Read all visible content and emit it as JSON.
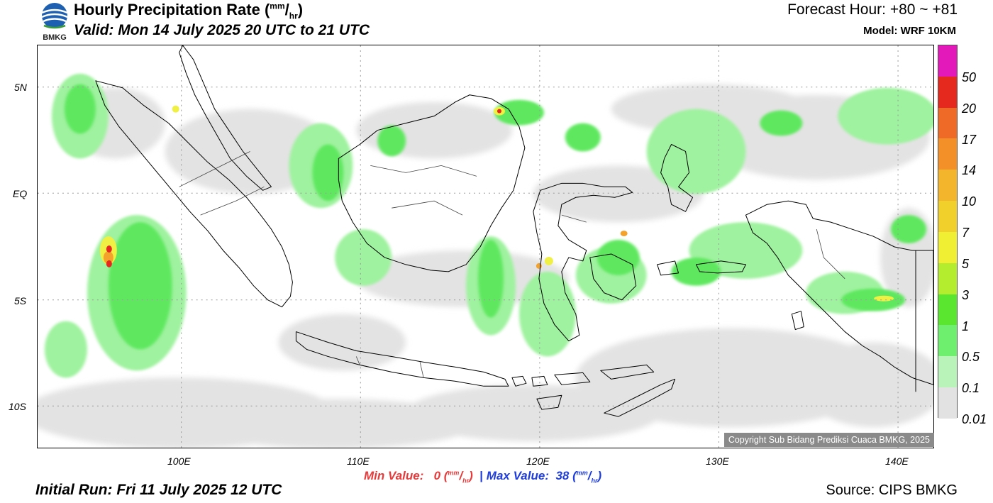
{
  "header": {
    "logo_text": "BMKG",
    "title": "Hourly Precipitation Rate (",
    "title_unit_top": "mm",
    "title_unit_slash": "/",
    "title_unit_bottom": "hr",
    "title_close": ")",
    "valid": "Valid: Mon 14 July 2025 20 UTC to 21 UTC",
    "forecast": "Forecast Hour: +80 ~ +81",
    "model": "Model: WRF 10KM"
  },
  "map": {
    "lat_labels": [
      "5N",
      "EQ",
      "5S",
      "10S"
    ],
    "lon_labels": [
      "100E",
      "110E",
      "120E",
      "130E",
      "140E"
    ],
    "copyright": "Copyright Sub Bidang Prediksi Cuaca BMKG, 2025",
    "colors": {
      "light_gray": "#e3e3e3",
      "green_light": "#9ff29f",
      "green": "#5ee85e",
      "green_mid": "#3ce63c",
      "yellow": "#f0f044",
      "orange": "#f3a22c",
      "red": "#e5281f"
    }
  },
  "colorbar": {
    "levels": [
      "50",
      "20",
      "17",
      "14",
      "10",
      "7",
      "5",
      "3",
      "1",
      "0.5",
      "0.1",
      "0.01"
    ],
    "colors": [
      "#e31ab9",
      "#e6291f",
      "#ef6a26",
      "#f39028",
      "#f2b52c",
      "#f2d02c",
      "#f1ef33",
      "#b4ec2e",
      "#5ae62f",
      "#6ef06e",
      "#b9f3b9",
      "#e2e2e2"
    ]
  },
  "footer": {
    "min_label": "Min Value:",
    "min_value": "0",
    "sep": "|",
    "max_label": "Max Value:",
    "max_value": "38",
    "unit_top": "mm",
    "unit_bottom": "hr",
    "initial_run": "Initial Run: Fri 11 July 2025 12 UTC",
    "source": "Source: CIPS BMKG"
  }
}
